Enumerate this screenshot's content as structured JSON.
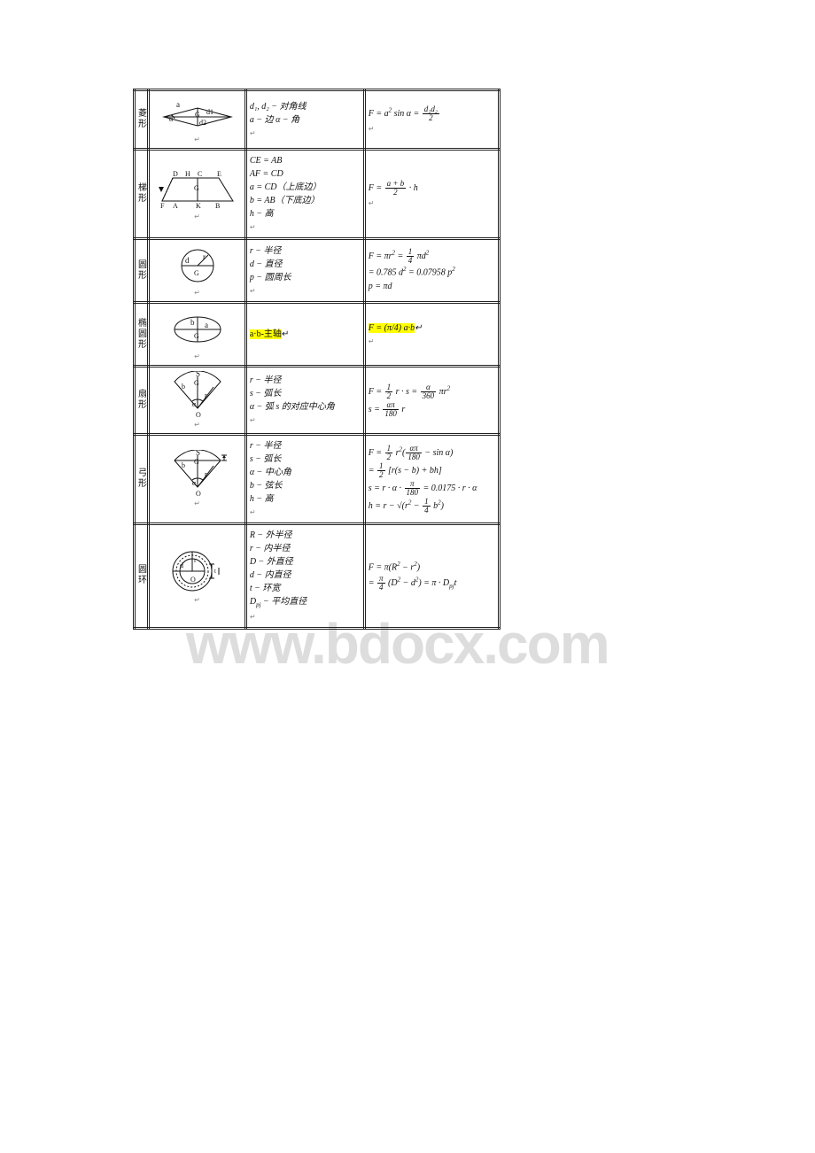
{
  "watermark_text": "www.bdocx.com",
  "table": {
    "border_color": "#222222",
    "background": "#ffffff",
    "highlight_color": "#ffff00",
    "rows": [
      {
        "name": "菱形",
        "desc_lines": [
          "d₁, d₂ − 对角线",
          "a − 边 α − 角"
        ],
        "formula_html": "F = a<sup>2</sup> sin α = <span class='frac'><span class='n'>d₁d₂</span><span class='d'>2</span></span>",
        "fig": "rhombus"
      },
      {
        "name": "梯形",
        "desc_lines": [
          "CE = AB",
          "AF = CD",
          "a = CD（上底边）",
          "b = AB（下底边）",
          "h − 高"
        ],
        "formula_html": "F = <span class='frac'><span class='n'>a + b</span><span class='d'>2</span></span> · h",
        "fig": "trapezoid"
      },
      {
        "name": "圆形",
        "desc_lines": [
          "r − 半径",
          "d − 直径",
          "p − 圆周长"
        ],
        "formula_lines": [
          "F = πr<sup>2</sup> = <span class='frac'><span class='n'>1</span><span class='d'>4</span></span> πd<sup>2</sup>",
          "= 0.785 d<sup>2</sup> = 0.07958 p<sup>2</sup>",
          "p = πd"
        ],
        "fig": "circle"
      },
      {
        "name": "椭圆形",
        "desc_html": "<span class='hl'>a·b-主轴</span>↵",
        "formula_html": "<span class='hl'>F = (π/4) a·b</span>↵",
        "fig": "ellipse"
      },
      {
        "name": "扇形",
        "desc_lines": [
          "r − 半径",
          "s − 弧长",
          "α − 弧 s 的对应中心角"
        ],
        "formula_lines": [
          "F = <span class='frac'><span class='n'>1</span><span class='d'>2</span></span> r · s = <span class='frac'><span class='n'>α</span><span class='d'>360</span></span> πr<sup>2</sup>",
          "s = <span class='frac'><span class='n'>απ</span><span class='d'>180</span></span> r"
        ],
        "fig": "sector"
      },
      {
        "name": "弓形",
        "desc_lines": [
          "r − 半径",
          "s − 弧长",
          "α − 中心角",
          "b − 弦长",
          "h − 高"
        ],
        "formula_lines": [
          "F = <span class='frac'><span class='n'>1</span><span class='d'>2</span></span> r<sup>2</sup>(<span class='frac'><span class='n'>απ</span><span class='d'>180</span></span> − sin α)",
          "= <span class='frac'><span class='n'>1</span><span class='d'>2</span></span> [r(s − b) + bh]",
          "s = r · α · <span class='frac'><span class='n'>π</span><span class='d'>180</span></span> = 0.0175 · r · α",
          "h = r − √(r<sup>2</sup> − <span class='frac'><span class='n'>1</span><span class='d'>4</span></span> b<sup>2</sup>)"
        ],
        "fig": "segment"
      },
      {
        "name": "圆环",
        "desc_lines": [
          "R − 外半径",
          "r − 内半径",
          "D − 外直径",
          "d − 内直径",
          "t − 环宽",
          "D<sub>pj</sub> − 平均直径"
        ],
        "formula_lines": [
          "F = π(R<sup>2</sup> − r<sup>2</sup>)",
          "= <span class='frac'><span class='n'>π</span><span class='d'>4</span></span> (D<sup>2</sup> − d<sup>2</sup>) = π · D<sub>pj</sub>t"
        ],
        "fig": "annulus"
      }
    ]
  },
  "figure_styles": {
    "stroke": "#111111",
    "stroke_width": 1,
    "label_font_size": 9,
    "label_font": "serif"
  }
}
